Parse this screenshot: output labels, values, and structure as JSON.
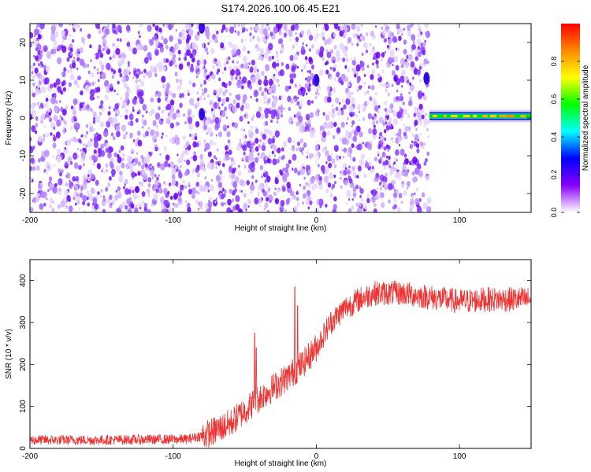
{
  "chart_data": [
    {
      "type": "heatmap",
      "title": "S174.2026.100.06.45.E21",
      "xlabel": "Height of straight line (km)",
      "ylabel": "Frequency (Hz)",
      "xlim": [
        -200,
        150
      ],
      "ylim": [
        -25,
        25
      ],
      "xticks": [
        -200,
        -100,
        0,
        100
      ],
      "yticks": [
        -20,
        -10,
        0,
        10,
        20
      ],
      "noise_extent_x": [
        -200,
        79
      ],
      "features": [
        {
          "x": -80,
          "y": 1,
          "amplitude": 0.25
        },
        {
          "x": -80,
          "y": 24,
          "amplitude": 0.2
        },
        {
          "x": 0,
          "y": 10,
          "amplitude": 0.25
        },
        {
          "x": 77,
          "y": 10.5,
          "amplitude": 0.25
        }
      ],
      "signal_band": {
        "x_start": 79,
        "x_end": 150,
        "frequency": 0.5,
        "amplitude": 0.75
      },
      "colorbar": {
        "label": "Normalized spectral amplitude",
        "range": [
          0,
          1
        ],
        "ticks": [
          0.0,
          0.2,
          0.4,
          0.6,
          0.8
        ],
        "tick_labels": [
          "0.0",
          "0.2",
          "0.4",
          "0.6",
          "0.8"
        ],
        "colors": [
          "#ffffff",
          "#8800ff",
          "#0000ff",
          "#00ffff",
          "#00ff00",
          "#ffff00",
          "#ff8800",
          "#ff0000"
        ]
      }
    },
    {
      "type": "line",
      "title": "",
      "xlabel": "Height of straight line (km)",
      "ylabel": "SNR (10 * v/v)",
      "xlim": [
        -200,
        150
      ],
      "ylim": [
        0,
        450
      ],
      "xticks": [
        -200,
        -100,
        0,
        100
      ],
      "yticks": [
        0,
        100,
        200,
        300,
        400
      ],
      "color": "#ee3333",
      "trend": {
        "x": [
          -200,
          -150,
          -90,
          -75,
          -60,
          -50,
          -40,
          -30,
          -20,
          -10,
          0,
          10,
          20,
          30,
          40,
          60,
          80,
          100,
          120,
          150
        ],
        "y": [
          20,
          20,
          22,
          35,
          60,
          90,
          120,
          145,
          170,
          200,
          240,
          300,
          335,
          355,
          370,
          370,
          360,
          350,
          355,
          355
        ]
      },
      "noise_amplitude": [
        {
          "from": -200,
          "to": -80,
          "amp": 12
        },
        {
          "from": -80,
          "to": 0,
          "amp": 35
        },
        {
          "from": 0,
          "to": 150,
          "amp": 30
        }
      ],
      "spikes": [
        {
          "x": -43,
          "y": 275
        },
        {
          "x": -15,
          "y": 385
        },
        {
          "x": -13,
          "y": 340
        },
        {
          "x": -42,
          "y": 240
        }
      ]
    }
  ]
}
